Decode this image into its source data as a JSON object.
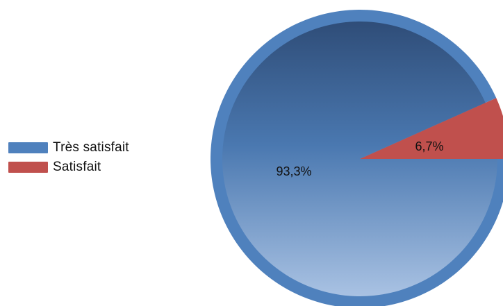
{
  "chart_data": {
    "type": "pie",
    "categories": [
      "Très satisfait",
      "Satisfait"
    ],
    "values": [
      93.3,
      6.7
    ],
    "value_labels": [
      "93,3%",
      "6,7%"
    ],
    "colors": [
      "#4f81bd",
      "#c0504d"
    ],
    "legend_position": "left",
    "title": ""
  },
  "legend": {
    "items": [
      {
        "label": "Très satisfait",
        "color": "#4f81bd"
      },
      {
        "label": "Satisfait",
        "color": "#c0504d"
      }
    ]
  }
}
